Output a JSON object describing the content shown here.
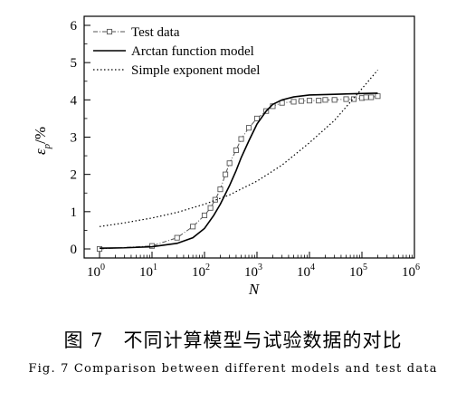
{
  "chart_data": {
    "type": "line",
    "xlabel": "N",
    "ylabel": "ε",
    "ylabel_subscript": "p",
    "ylabel_unit": "/%",
    "x_scale": "log",
    "xlim": [
      1,
      1000000
    ],
    "ylim": [
      0,
      6
    ],
    "x_tick_bases": [
      "10",
      "10",
      "10",
      "10",
      "10",
      "10",
      "10"
    ],
    "x_tick_exponents": [
      "0",
      "1",
      "2",
      "3",
      "4",
      "5",
      "6"
    ],
    "y_ticks": [
      "0",
      "1",
      "2",
      "3",
      "4",
      "5",
      "6"
    ],
    "legend_position": "top-left",
    "series": [
      {
        "name": "Test data",
        "style": "dash-dot with square markers",
        "x": [
          1,
          10,
          30,
          60,
          100,
          130,
          160,
          200,
          250,
          300,
          400,
          500,
          700,
          1000,
          1500,
          2000,
          3000,
          5000,
          7000,
          10000,
          15000,
          20000,
          30000,
          50000,
          70000,
          100000,
          120000,
          150000,
          200000
        ],
        "y": [
          0.0,
          0.08,
          0.3,
          0.6,
          0.9,
          1.1,
          1.32,
          1.6,
          2.0,
          2.3,
          2.65,
          2.95,
          3.25,
          3.5,
          3.7,
          3.83,
          3.92,
          3.95,
          3.97,
          3.98,
          3.98,
          4.0,
          4.0,
          4.02,
          4.02,
          4.05,
          4.07,
          4.07,
          4.1
        ]
      },
      {
        "name": "Arctan function model",
        "style": "solid",
        "x": [
          1,
          3,
          10,
          30,
          60,
          100,
          150,
          200,
          300,
          400,
          500,
          700,
          1000,
          1500,
          2000,
          3000,
          5000,
          10000,
          30000,
          100000,
          200000
        ],
        "y": [
          0.02,
          0.03,
          0.06,
          0.15,
          0.3,
          0.55,
          0.9,
          1.2,
          1.7,
          2.1,
          2.45,
          2.9,
          3.35,
          3.7,
          3.88,
          4.0,
          4.08,
          4.13,
          4.15,
          4.17,
          4.18
        ]
      },
      {
        "name": "Simple exponent model",
        "style": "dotted",
        "x": [
          1,
          3,
          10,
          30,
          100,
          300,
          1000,
          3000,
          10000,
          30000,
          100000,
          200000
        ],
        "y": [
          0.6,
          0.7,
          0.83,
          0.98,
          1.2,
          1.45,
          1.82,
          2.25,
          2.85,
          3.45,
          4.3,
          4.8
        ]
      }
    ]
  },
  "caption": {
    "zh": "图 7　不同计算模型与试验数据的对比",
    "en": "Fig. 7   Comparison between different models and test data"
  }
}
